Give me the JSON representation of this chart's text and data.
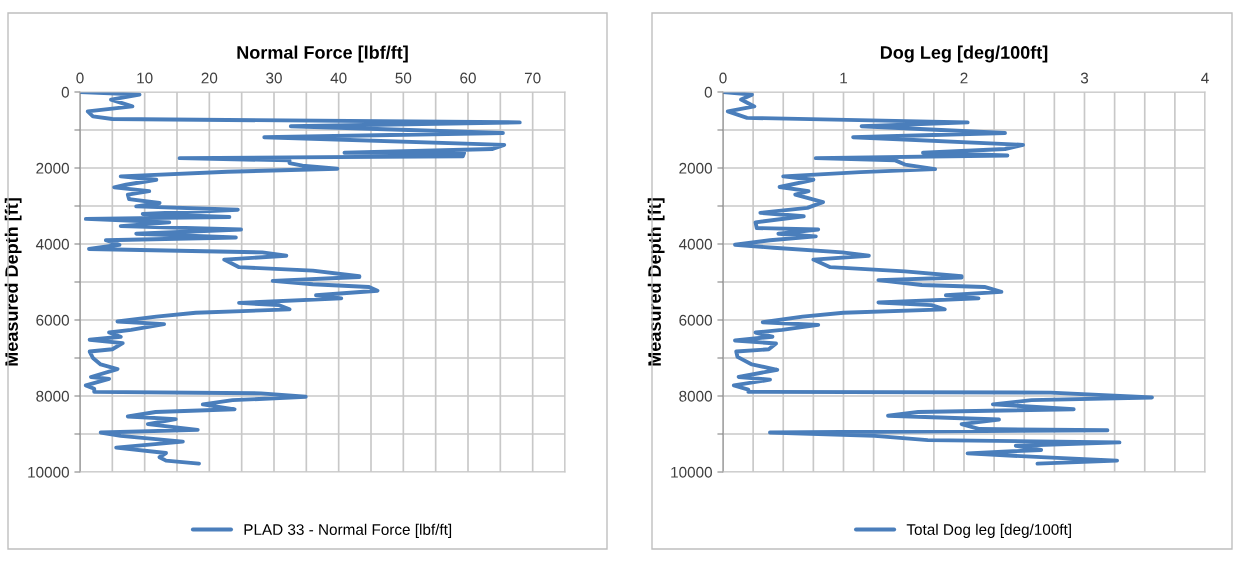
{
  "chart_data": [
    {
      "type": "line",
      "title": "Normal Force [lbf/ft]",
      "ylabel": "Measured Depth [ft]",
      "legend": "bottom",
      "grid": true,
      "xlim": [
        0,
        75
      ],
      "xticks": [
        0,
        {
          "value": 5,
          "label": null
        },
        10,
        {
          "value": 15,
          "label": null
        },
        20,
        {
          "value": 25,
          "label": null
        },
        30,
        {
          "value": 35,
          "label": null
        },
        40,
        {
          "value": 45,
          "label": null
        },
        50,
        {
          "value": 55,
          "label": null
        },
        60,
        {
          "value": 65,
          "label": null
        },
        70,
        {
          "value": 75,
          "label": null
        }
      ],
      "ylim": [
        10000,
        0
      ],
      "yticks": [
        0,
        {
          "value": 1000,
          "label": null
        },
        2000,
        {
          "value": 3000,
          "label": null
        },
        4000,
        {
          "value": 5000,
          "label": null
        },
        6000,
        {
          "value": 7000,
          "label": null
        },
        8000,
        {
          "value": 9000,
          "label": null
        },
        10000
      ],
      "series": [
        {
          "name": "PLAD 33 - Normal Force [lbf/ft]",
          "color": "#4a7ebb",
          "x": [
            0,
            9.2,
            4.8,
            8.1,
            1.2,
            2,
            5,
            68,
            32.6,
            65.4,
            28.5,
            65.6,
            63.8,
            40.9,
            59.4,
            59.2,
            15.4,
            32.4,
            32.4,
            34.4,
            39.8,
            22.8,
            6.3,
            11.8,
            7.1,
            5.3,
            10.7,
            7.4,
            7.6,
            12.3,
            8.7,
            24.4,
            9.7,
            23.1,
            0.9,
            13.8,
            6.3,
            24.9,
            8.7,
            24.1,
            4,
            6.1,
            1.4,
            28.2,
            31.9,
            22.3,
            24.6,
            36,
            43.2,
            43.2,
            29.8,
            36,
            44.7,
            46,
            36.5,
            40.4,
            24.6,
            30.8,
            32.4,
            17.9,
            11.8,
            5.8,
            13,
            7.9,
            4.5,
            6.3,
            1.5,
            6.6,
            5,
            1.5,
            2,
            3.2,
            5.8,
            1.7,
            4.5,
            0.9,
            2.2,
            2.2,
            28,
            34.9,
            23.6,
            19,
            23.9,
            11.7,
            7.4,
            14.8,
            10.5,
            18.2,
            3.2,
            6.3,
            15.9,
            5.6,
            13.3,
            12.3,
            13.3,
            18.4
          ],
          "values": [
            0,
            70,
            200,
            380,
            510,
            640,
            710,
            800,
            900,
            1080,
            1190,
            1390,
            1500,
            1600,
            1600,
            1690,
            1740,
            1800,
            1870,
            1940,
            2020,
            2100,
            2220,
            2310,
            2440,
            2510,
            2610,
            2700,
            2820,
            2920,
            3010,
            3100,
            3210,
            3290,
            3340,
            3430,
            3530,
            3620,
            3730,
            3830,
            3900,
            4020,
            4130,
            4220,
            4310,
            4410,
            4610,
            4700,
            4850,
            4870,
            4970,
            5060,
            5130,
            5230,
            5350,
            5430,
            5550,
            5610,
            5720,
            5810,
            5910,
            6040,
            6110,
            6260,
            6330,
            6440,
            6520,
            6610,
            6770,
            6830,
            7000,
            7170,
            7290,
            7500,
            7550,
            7720,
            7810,
            7890,
            7930,
            8020,
            8110,
            8220,
            8350,
            8420,
            8540,
            8610,
            8740,
            8890,
            8960,
            9050,
            9200,
            9360,
            9500,
            9610,
            9700,
            9780
          ]
        }
      ]
    },
    {
      "type": "line",
      "title": "Dog Leg [deg/100ft]",
      "ylabel": "Measured Depth [ft]",
      "legend": "bottom",
      "grid": true,
      "xlim": [
        0,
        4
      ],
      "xticks": [
        0,
        {
          "value": 0.25,
          "label": null
        },
        {
          "value": 0.5,
          "label": null
        },
        {
          "value": 0.75,
          "label": null
        },
        1,
        {
          "value": 1.25,
          "label": null
        },
        {
          "value": 1.5,
          "label": null
        },
        {
          "value": 1.75,
          "label": null
        },
        2,
        {
          "value": 2.25,
          "label": null
        },
        {
          "value": 2.5,
          "label": null
        },
        {
          "value": 2.75,
          "label": null
        },
        3,
        {
          "value": 3.25,
          "label": null
        },
        {
          "value": 3.5,
          "label": null
        },
        {
          "value": 3.75,
          "label": null
        },
        4
      ],
      "ylim": [
        10000,
        0
      ],
      "yticks": [
        0,
        {
          "value": 1000,
          "label": null
        },
        2000,
        {
          "value": 3000,
          "label": null
        },
        4000,
        {
          "value": 5000,
          "label": null
        },
        6000,
        {
          "value": 7000,
          "label": null
        },
        8000,
        {
          "value": 9000,
          "label": null
        },
        10000
      ],
      "series": [
        {
          "name": "Total Dog leg [deg/100ft]",
          "color": "#4a7ebb",
          "x": [
            0,
            0.24,
            0.15,
            0.26,
            0.04,
            0.2,
            2.03,
            1.15,
            2.34,
            1.08,
            2.49,
            2.34,
            1.66,
            2.36,
            0.77,
            1.43,
            1.51,
            1.76,
            1.14,
            0.5,
            0.75,
            0.47,
            0.71,
            0.6,
            0.83,
            0.7,
            0.31,
            0.67,
            0.27,
            0.28,
            0.79,
            0.46,
            0.77,
            0.39,
            0.1,
            0.42,
            0.99,
            1.21,
            0.75,
            0.89,
            1.51,
            1.98,
            1.98,
            1.29,
            1.65,
            2.17,
            2.31,
            1.85,
            2.12,
            1.29,
            1.73,
            1.84,
            1,
            0.66,
            0.33,
            0.79,
            0.49,
            0.27,
            0.41,
            0.1,
            0.44,
            0.38,
            0.11,
            0.12,
            0.24,
            0.45,
            0.13,
            0.39,
            0.09,
            0.21,
            0.21,
            2.72,
            3.56,
            2.56,
            2.24,
            2.91,
            1.62,
            1.37,
            2.29,
            1.98,
            2.13,
            3.19,
            0.39,
            1.26,
            1.7,
            3.29,
            2.43,
            2.64,
            2.03,
            2.64,
            3.27,
            2.61
          ],
          "values": [
            0,
            70,
            200,
            380,
            510,
            680,
            800,
            900,
            1080,
            1190,
            1390,
            1500,
            1600,
            1670,
            1740,
            1800,
            1910,
            2030,
            2110,
            2220,
            2310,
            2500,
            2610,
            2700,
            2900,
            3050,
            3180,
            3270,
            3430,
            3580,
            3620,
            3730,
            3800,
            3900,
            4020,
            4100,
            4220,
            4310,
            4410,
            4610,
            4720,
            4850,
            4880,
            4950,
            5080,
            5130,
            5260,
            5350,
            5430,
            5540,
            5610,
            5720,
            5810,
            5910,
            6060,
            6130,
            6260,
            6330,
            6440,
            6540,
            6620,
            6770,
            6830,
            6970,
            7170,
            7310,
            7500,
            7570,
            7720,
            7830,
            7890,
            7910,
            8040,
            8110,
            8220,
            8350,
            8420,
            8520,
            8620,
            8740,
            8870,
            8900,
            8960,
            9050,
            9160,
            9220,
            9310,
            9420,
            9510,
            9610,
            9700,
            9780
          ]
        }
      ]
    }
  ]
}
